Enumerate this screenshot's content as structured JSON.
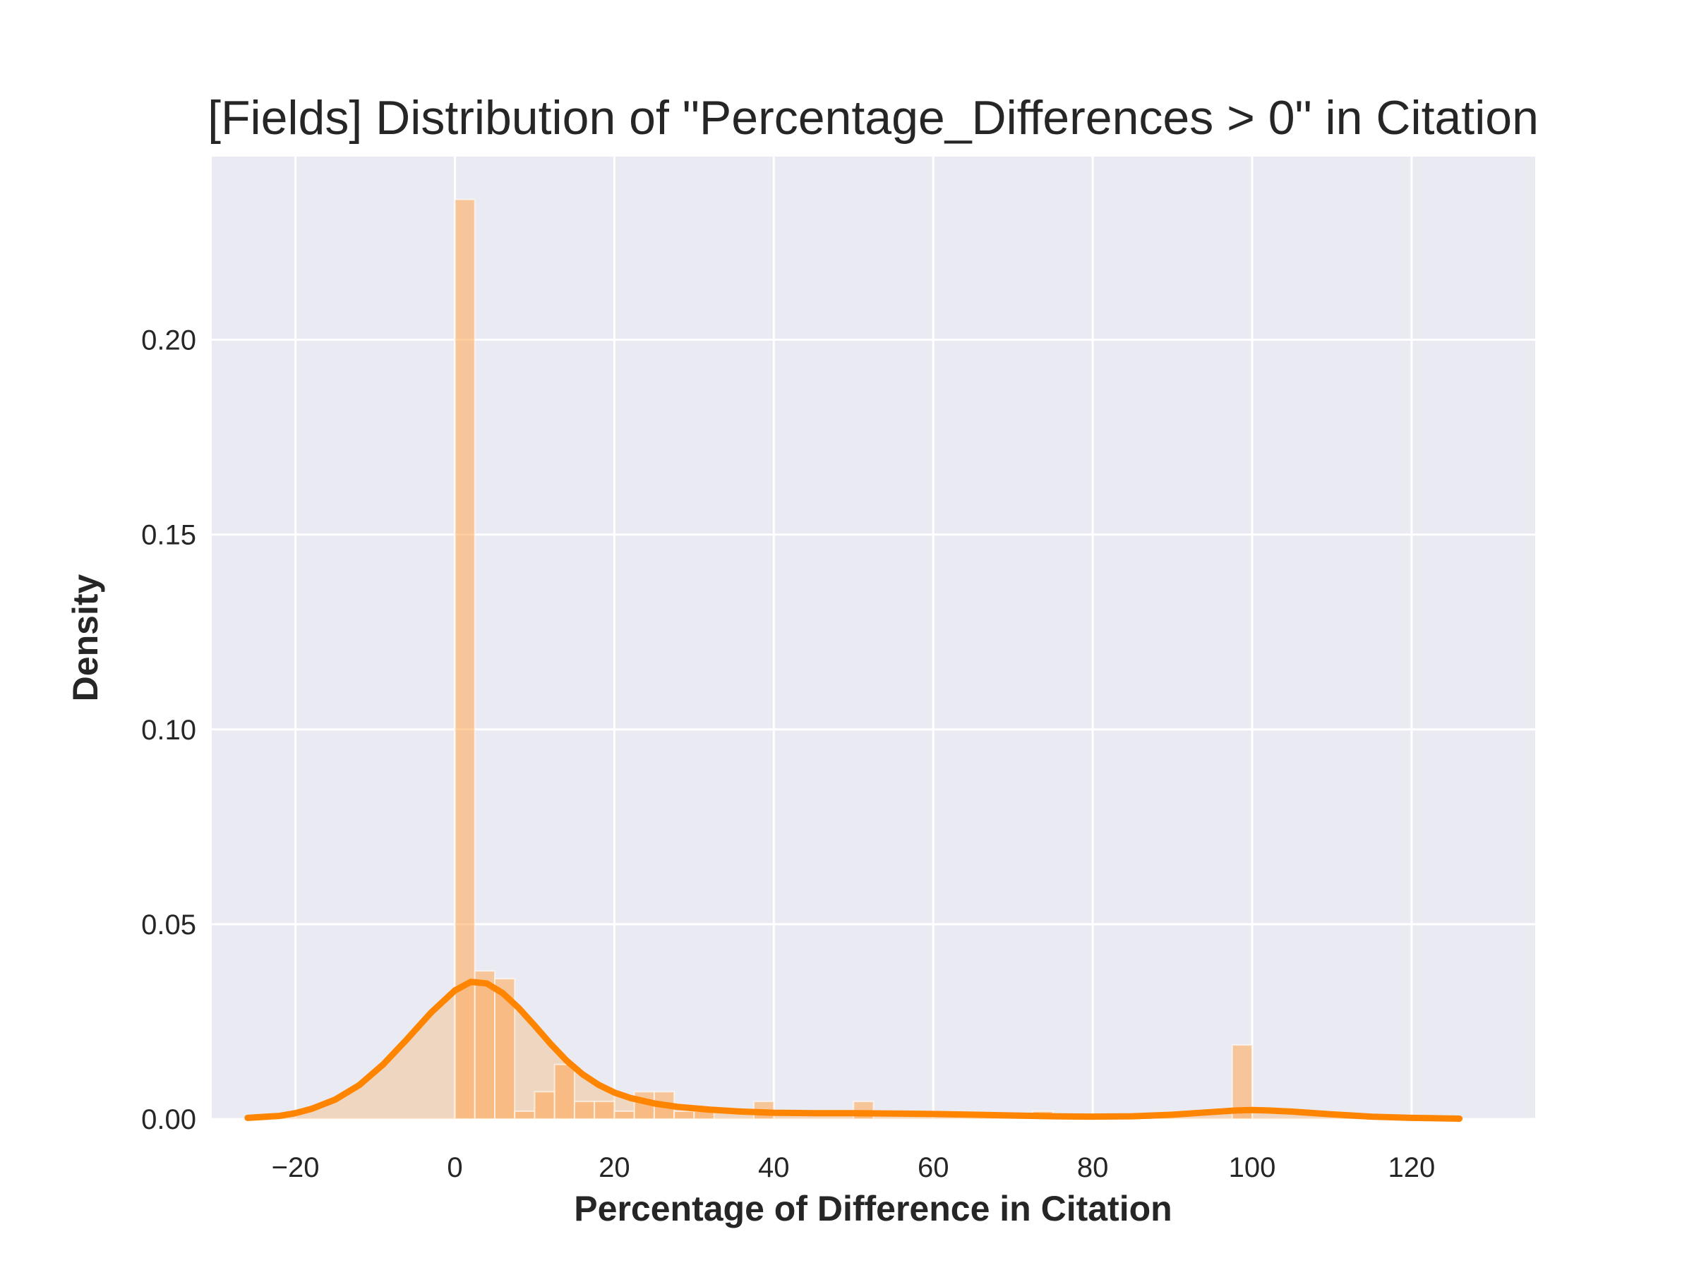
{
  "chart_data": {
    "type": "histogram",
    "title": "[Fields] Distribution of \"Percentage_Differences > 0\" in Citation",
    "xlabel": "Percentage of Difference in Citation",
    "ylabel": "Density",
    "xlim": [
      -30.5,
      135.5
    ],
    "ylim": [
      0,
      0.247
    ],
    "x_ticks": [
      -20,
      0,
      20,
      40,
      60,
      80,
      100,
      120
    ],
    "x_tick_labels": [
      "−20",
      "0",
      "20",
      "40",
      "60",
      "80",
      "100",
      "120"
    ],
    "y_ticks": [
      0.0,
      0.05,
      0.1,
      0.15,
      0.2
    ],
    "y_tick_labels": [
      "0.00",
      "0.05",
      "0.10",
      "0.15",
      "0.20"
    ],
    "grid": true,
    "background_color": "#eaeaf2",
    "bar_color": "#ffa550",
    "line_color": "#ff8500",
    "bins": [
      {
        "x0": 0.0,
        "x1": 2.5,
        "value": 0.236
      },
      {
        "x0": 2.5,
        "x1": 5.0,
        "value": 0.038
      },
      {
        "x0": 5.0,
        "x1": 7.5,
        "value": 0.036
      },
      {
        "x0": 7.5,
        "x1": 10.0,
        "value": 0.002
      },
      {
        "x0": 10.0,
        "x1": 12.5,
        "value": 0.007
      },
      {
        "x0": 12.5,
        "x1": 15.0,
        "value": 0.014
      },
      {
        "x0": 15.0,
        "x1": 17.5,
        "value": 0.0045
      },
      {
        "x0": 17.5,
        "x1": 20.0,
        "value": 0.0045
      },
      {
        "x0": 20.0,
        "x1": 22.5,
        "value": 0.002
      },
      {
        "x0": 22.5,
        "x1": 25.0,
        "value": 0.007
      },
      {
        "x0": 25.0,
        "x1": 27.5,
        "value": 0.007
      },
      {
        "x0": 27.5,
        "x1": 30.0,
        "value": 0.002
      },
      {
        "x0": 30.0,
        "x1": 32.5,
        "value": 0.002
      },
      {
        "x0": 37.5,
        "x1": 40.0,
        "value": 0.0045
      },
      {
        "x0": 50.0,
        "x1": 52.5,
        "value": 0.0045
      },
      {
        "x0": 72.5,
        "x1": 75.0,
        "value": 0.002
      },
      {
        "x0": 97.5,
        "x1": 100.0,
        "value": 0.019
      }
    ],
    "kde": {
      "x": [
        -26,
        -22,
        -20,
        -18,
        -15,
        -12,
        -9,
        -6,
        -3,
        0,
        2,
        4,
        6,
        8,
        10,
        12,
        14,
        16,
        18,
        20,
        22,
        25,
        28,
        32,
        36,
        40,
        45,
        50,
        55,
        60,
        65,
        70,
        75,
        80,
        85,
        90,
        95,
        98,
        100,
        102,
        105,
        110,
        115,
        120,
        126
      ],
      "y": [
        0.0003,
        0.0008,
        0.0015,
        0.0026,
        0.005,
        0.0087,
        0.014,
        0.0205,
        0.0273,
        0.033,
        0.0352,
        0.0348,
        0.0323,
        0.0285,
        0.024,
        0.0193,
        0.015,
        0.0115,
        0.0088,
        0.0068,
        0.0054,
        0.004,
        0.0031,
        0.0024,
        0.0019,
        0.0016,
        0.0015,
        0.0015,
        0.0014,
        0.0013,
        0.0011,
        0.0009,
        0.0007,
        0.0006,
        0.0007,
        0.0011,
        0.0018,
        0.0022,
        0.0023,
        0.0022,
        0.0019,
        0.0012,
        0.0006,
        0.0003,
        0.0001
      ]
    }
  }
}
